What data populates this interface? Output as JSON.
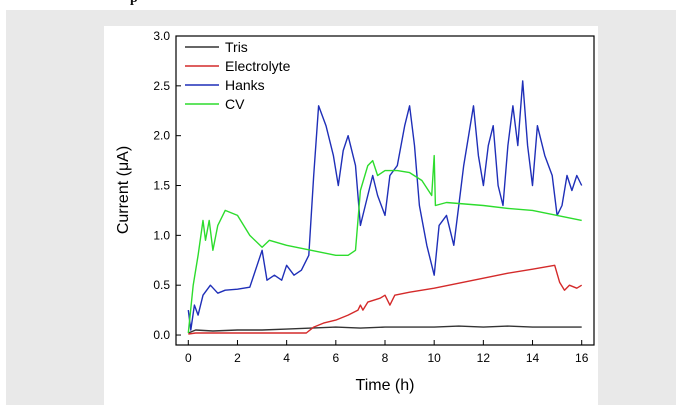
{
  "header": {
    "clipped_text": "p"
  },
  "chart_data": {
    "type": "line",
    "xlabel": "Time (h)",
    "ylabel": "Current (μA)",
    "xlim": [
      -0.5,
      16.5
    ],
    "ylim": [
      -0.1,
      3.0
    ],
    "x_ticks": [
      0,
      2,
      4,
      6,
      8,
      10,
      12,
      14,
      16
    ],
    "x_tick_labels": [
      "0",
      "2",
      "4",
      "6",
      "8",
      "10",
      "12",
      "14",
      "16"
    ],
    "y_ticks": [
      0.0,
      0.5,
      1.0,
      1.5,
      2.0,
      2.5,
      3.0
    ],
    "y_tick_labels": [
      "0.0",
      "0.5",
      "1.0",
      "1.5",
      "2.0",
      "2.5",
      "3.0"
    ],
    "grid": false,
    "legend_position": "top-left",
    "series": [
      {
        "name": "Tris",
        "color": "#333333",
        "points": [
          [
            0,
            0.02
          ],
          [
            0.3,
            0.05
          ],
          [
            1,
            0.04
          ],
          [
            2,
            0.05
          ],
          [
            3,
            0.05
          ],
          [
            4,
            0.06
          ],
          [
            5,
            0.07
          ],
          [
            6,
            0.08
          ],
          [
            7,
            0.07
          ],
          [
            8,
            0.08
          ],
          [
            9,
            0.08
          ],
          [
            10,
            0.08
          ],
          [
            11,
            0.09
          ],
          [
            12,
            0.08
          ],
          [
            13,
            0.09
          ],
          [
            14,
            0.08
          ],
          [
            15,
            0.08
          ],
          [
            16,
            0.08
          ]
        ]
      },
      {
        "name": "Electrolyte",
        "color": "#d42a2a",
        "points": [
          [
            0,
            0.01
          ],
          [
            0.3,
            0.02
          ],
          [
            1,
            0.02
          ],
          [
            2,
            0.02
          ],
          [
            3,
            0.02
          ],
          [
            4,
            0.02
          ],
          [
            4.8,
            0.02
          ],
          [
            5.1,
            0.08
          ],
          [
            5.5,
            0.12
          ],
          [
            6,
            0.15
          ],
          [
            6.5,
            0.2
          ],
          [
            6.9,
            0.25
          ],
          [
            7,
            0.3
          ],
          [
            7.1,
            0.25
          ],
          [
            7.3,
            0.33
          ],
          [
            7.8,
            0.37
          ],
          [
            8,
            0.4
          ],
          [
            8.2,
            0.3
          ],
          [
            8.4,
            0.4
          ],
          [
            9,
            0.43
          ],
          [
            10,
            0.47
          ],
          [
            11,
            0.52
          ],
          [
            12,
            0.57
          ],
          [
            13,
            0.62
          ],
          [
            14,
            0.66
          ],
          [
            14.9,
            0.7
          ],
          [
            15.1,
            0.53
          ],
          [
            15.3,
            0.45
          ],
          [
            15.5,
            0.5
          ],
          [
            15.8,
            0.47
          ],
          [
            16,
            0.5
          ]
        ]
      },
      {
        "name": "Hanks",
        "color": "#1f2fb8",
        "points": [
          [
            0,
            0.25
          ],
          [
            0.1,
            0.05
          ],
          [
            0.25,
            0.3
          ],
          [
            0.4,
            0.2
          ],
          [
            0.6,
            0.4
          ],
          [
            0.9,
            0.5
          ],
          [
            1.2,
            0.42
          ],
          [
            1.5,
            0.45
          ],
          [
            2,
            0.46
          ],
          [
            2.5,
            0.48
          ],
          [
            2.8,
            0.7
          ],
          [
            3,
            0.85
          ],
          [
            3.2,
            0.55
          ],
          [
            3.5,
            0.6
          ],
          [
            3.8,
            0.55
          ],
          [
            4,
            0.7
          ],
          [
            4.3,
            0.6
          ],
          [
            4.6,
            0.65
          ],
          [
            4.9,
            0.8
          ],
          [
            5.1,
            1.6
          ],
          [
            5.3,
            2.3
          ],
          [
            5.6,
            2.1
          ],
          [
            5.9,
            1.8
          ],
          [
            6.1,
            1.5
          ],
          [
            6.3,
            1.85
          ],
          [
            6.5,
            2.0
          ],
          [
            6.8,
            1.7
          ],
          [
            7.0,
            1.1
          ],
          [
            7.2,
            1.3
          ],
          [
            7.5,
            1.6
          ],
          [
            7.7,
            1.4
          ],
          [
            8.0,
            1.2
          ],
          [
            8.2,
            1.6
          ],
          [
            8.5,
            1.7
          ],
          [
            8.8,
            2.1
          ],
          [
            9.0,
            2.3
          ],
          [
            9.2,
            1.9
          ],
          [
            9.4,
            1.3
          ],
          [
            9.7,
            0.9
          ],
          [
            10.0,
            0.6
          ],
          [
            10.2,
            1.1
          ],
          [
            10.5,
            1.2
          ],
          [
            10.8,
            0.9
          ],
          [
            11.0,
            1.3
          ],
          [
            11.2,
            1.7
          ],
          [
            11.4,
            2.0
          ],
          [
            11.6,
            2.3
          ],
          [
            11.8,
            1.8
          ],
          [
            12.0,
            1.5
          ],
          [
            12.2,
            1.9
          ],
          [
            12.4,
            2.1
          ],
          [
            12.6,
            1.5
          ],
          [
            12.8,
            1.3
          ],
          [
            13.0,
            1.9
          ],
          [
            13.2,
            2.3
          ],
          [
            13.4,
            1.9
          ],
          [
            13.6,
            2.55
          ],
          [
            13.8,
            1.9
          ],
          [
            14.0,
            1.5
          ],
          [
            14.2,
            2.1
          ],
          [
            14.5,
            1.8
          ],
          [
            14.8,
            1.6
          ],
          [
            15.0,
            1.2
          ],
          [
            15.2,
            1.3
          ],
          [
            15.4,
            1.6
          ],
          [
            15.6,
            1.45
          ],
          [
            15.8,
            1.6
          ],
          [
            16.0,
            1.5
          ]
        ]
      },
      {
        "name": "CV",
        "color": "#2ddc2d",
        "points": [
          [
            0,
            0.02
          ],
          [
            0.2,
            0.5
          ],
          [
            0.4,
            0.8
          ],
          [
            0.6,
            1.15
          ],
          [
            0.7,
            0.95
          ],
          [
            0.85,
            1.15
          ],
          [
            1.0,
            0.85
          ],
          [
            1.2,
            1.1
          ],
          [
            1.5,
            1.25
          ],
          [
            2.0,
            1.2
          ],
          [
            2.5,
            1.0
          ],
          [
            3.0,
            0.88
          ],
          [
            3.3,
            0.95
          ],
          [
            4.0,
            0.9
          ],
          [
            5.0,
            0.85
          ],
          [
            6.0,
            0.8
          ],
          [
            6.5,
            0.8
          ],
          [
            6.8,
            0.85
          ],
          [
            7.0,
            1.45
          ],
          [
            7.3,
            1.7
          ],
          [
            7.5,
            1.75
          ],
          [
            7.7,
            1.6
          ],
          [
            8.0,
            1.65
          ],
          [
            8.5,
            1.65
          ],
          [
            9.0,
            1.63
          ],
          [
            9.5,
            1.55
          ],
          [
            9.9,
            1.4
          ],
          [
            10.0,
            1.8
          ],
          [
            10.05,
            1.3
          ],
          [
            10.5,
            1.33
          ],
          [
            11.0,
            1.32
          ],
          [
            12.0,
            1.3
          ],
          [
            13.0,
            1.27
          ],
          [
            14.0,
            1.25
          ],
          [
            15.0,
            1.2
          ],
          [
            16.0,
            1.15
          ]
        ]
      }
    ]
  }
}
